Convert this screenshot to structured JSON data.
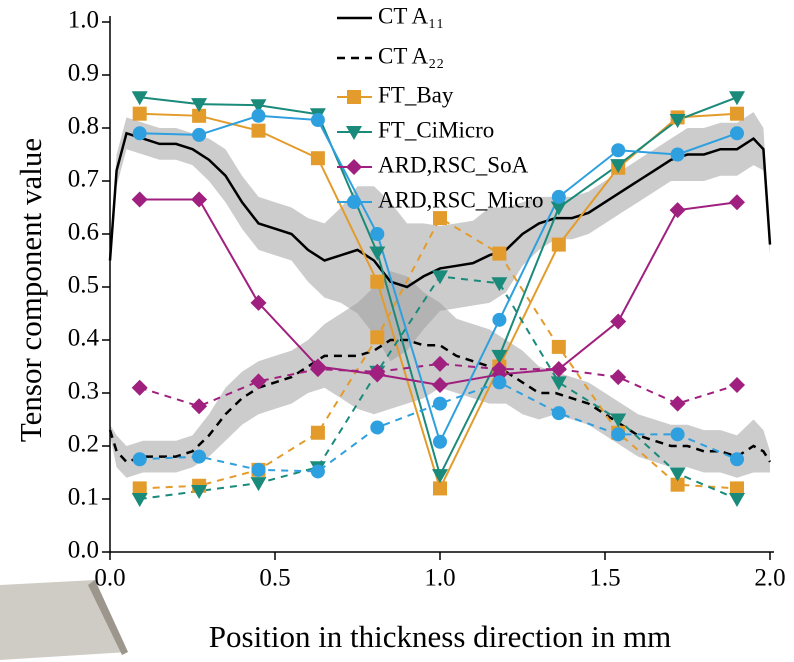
{
  "chart_data": {
    "type": "line",
    "x_label": "Position in thickness direction in mm",
    "y_label": "Tensor component value",
    "xlim": [
      0,
      2
    ],
    "ylim": [
      0,
      1
    ],
    "xticks": [
      {
        "value": 0,
        "label": "0.0"
      },
      0.5,
      {
        "value": 1,
        "label": "1.0"
      },
      1.5,
      {
        "value": 2,
        "label": "2.0"
      }
    ],
    "yticks": [
      {
        "value": 0,
        "label": "0.0"
      },
      0.1,
      0.2,
      0.3,
      0.4,
      0.5,
      0.6,
      0.7,
      0.8,
      0.9,
      {
        "value": 1,
        "label": "1.0"
      }
    ],
    "ct_x": [
      0,
      0.02,
      0.05,
      0.1,
      0.15,
      0.2,
      0.25,
      0.3,
      0.35,
      0.4,
      0.45,
      0.5,
      0.55,
      0.6,
      0.65,
      0.7,
      0.75,
      0.8,
      0.85,
      0.9,
      0.95,
      1.0,
      1.05,
      1.1,
      1.15,
      1.2,
      1.25,
      1.3,
      1.35,
      1.4,
      1.45,
      1.5,
      1.55,
      1.6,
      1.65,
      1.7,
      1.75,
      1.8,
      1.85,
      1.9,
      1.95,
      1.98,
      2.0
    ],
    "ct_series": [
      {
        "name": "CT A₁₁",
        "color": "#000000",
        "dashed": false,
        "values": [
          0.55,
          0.72,
          0.79,
          0.78,
          0.77,
          0.77,
          0.76,
          0.74,
          0.71,
          0.66,
          0.62,
          0.61,
          0.6,
          0.57,
          0.55,
          0.56,
          0.57,
          0.55,
          0.51,
          0.5,
          0.52,
          0.535,
          0.54,
          0.545,
          0.56,
          0.57,
          0.6,
          0.62,
          0.63,
          0.63,
          0.64,
          0.66,
          0.68,
          0.7,
          0.72,
          0.74,
          0.75,
          0.75,
          0.76,
          0.76,
          0.78,
          0.76,
          0.58
        ],
        "spread": [
          0.01,
          0.03,
          0.03,
          0.03,
          0.03,
          0.03,
          0.03,
          0.04,
          0.05,
          0.05,
          0.05,
          0.05,
          0.05,
          0.06,
          0.07,
          0.09,
          0.12,
          0.14,
          0.15,
          0.12,
          0.1,
          0.08,
          0.08,
          0.08,
          0.09,
          0.08,
          0.06,
          0.05,
          0.04,
          0.04,
          0.04,
          0.04,
          0.04,
          0.04,
          0.04,
          0.04,
          0.05,
          0.05,
          0.05,
          0.05,
          0.05,
          0.04,
          0.02
        ]
      },
      {
        "name": "CT A₂₂",
        "color": "#000000",
        "dashed": true,
        "values": [
          0.23,
          0.19,
          0.17,
          0.18,
          0.18,
          0.18,
          0.19,
          0.22,
          0.26,
          0.29,
          0.31,
          0.32,
          0.33,
          0.35,
          0.37,
          0.37,
          0.37,
          0.38,
          0.4,
          0.4,
          0.39,
          0.39,
          0.37,
          0.36,
          0.35,
          0.34,
          0.32,
          0.3,
          0.3,
          0.29,
          0.28,
          0.26,
          0.24,
          0.22,
          0.21,
          0.2,
          0.2,
          0.19,
          0.19,
          0.18,
          0.2,
          0.19,
          0.17
        ],
        "spread": [
          0.01,
          0.03,
          0.03,
          0.03,
          0.03,
          0.03,
          0.03,
          0.04,
          0.05,
          0.05,
          0.05,
          0.05,
          0.05,
          0.05,
          0.06,
          0.08,
          0.1,
          0.12,
          0.13,
          0.12,
          0.1,
          0.08,
          0.07,
          0.07,
          0.07,
          0.06,
          0.06,
          0.05,
          0.04,
          0.04,
          0.04,
          0.04,
          0.04,
          0.04,
          0.04,
          0.04,
          0.04,
          0.04,
          0.04,
          0.04,
          0.05,
          0.04,
          0.02
        ]
      }
    ],
    "x": [
      0.09,
      0.27,
      0.45,
      0.63,
      0.81,
      1.0,
      1.18,
      1.36,
      1.54,
      1.72,
      1.9
    ],
    "series": [
      {
        "name": "FT_Bay",
        "color": "#e39b2b",
        "marker": "square",
        "values": [
          0.827,
          0.823,
          0.795,
          0.743,
          0.51,
          0.12,
          0.35,
          0.58,
          0.725,
          0.82,
          0.827
        ],
        "dashed_values": [
          0.12,
          0.125,
          0.155,
          0.225,
          0.405,
          0.63,
          0.563,
          0.387,
          0.225,
          0.127,
          0.12
        ]
      },
      {
        "name": "FT_CiMicro",
        "color": "#1a8a7a",
        "marker": "triangle",
        "values": [
          0.858,
          0.845,
          0.843,
          0.826,
          0.565,
          0.145,
          0.37,
          0.65,
          0.73,
          0.815,
          0.858
        ],
        "dashed_values": [
          0.1,
          0.115,
          0.13,
          0.16,
          0.34,
          0.52,
          0.507,
          0.32,
          0.25,
          0.148,
          0.1
        ]
      },
      {
        "name": "ARD,RSC_SoA",
        "color": "#a0207f",
        "marker": "diamond",
        "values": [
          0.665,
          0.665,
          0.47,
          0.35,
          0.335,
          0.315,
          0.335,
          0.345,
          0.435,
          0.645,
          0.66
        ],
        "dashed_values": [
          0.31,
          0.275,
          0.322,
          0.345,
          0.34,
          0.355,
          0.345,
          0.345,
          0.33,
          0.28,
          0.315
        ]
      },
      {
        "name": "ARD,RSC_Micro",
        "color": "#2e9fdf",
        "marker": "circle",
        "values": [
          0.79,
          0.787,
          0.823,
          0.815,
          0.6,
          0.208,
          0.438,
          0.67,
          0.758,
          0.75,
          0.79
        ],
        "dashed_values": [
          0.175,
          0.18,
          0.155,
          0.152,
          0.235,
          0.28,
          0.32,
          0.262,
          0.222,
          0.222,
          0.175
        ]
      }
    ]
  }
}
